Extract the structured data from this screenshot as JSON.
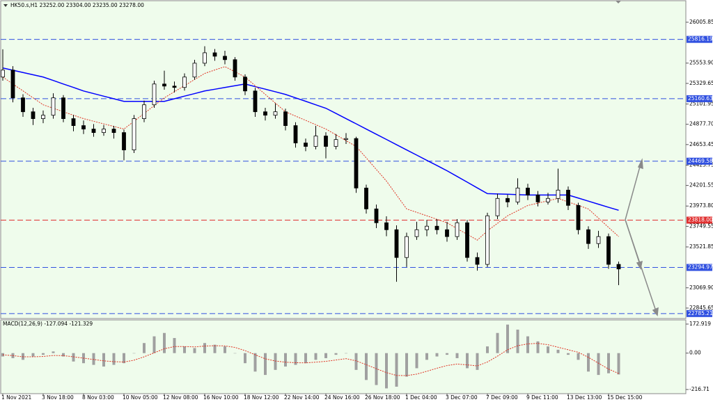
{
  "chart_data": [
    {
      "type": "candlestick",
      "title": "HK50.s,H1  23252.00 23304.00 23235.00 23278.00",
      "categories": [
        "1 Nov 2021",
        null,
        null,
        null,
        "3 Nov 18:00",
        null,
        null,
        null,
        "8 Nov 03:00",
        null,
        null,
        null,
        "10 Nov 05:00",
        null,
        null,
        null,
        "12 Nov 08:00",
        null,
        null,
        null,
        "16 Nov 10:00",
        null,
        null,
        null,
        "18 Nov 12:00",
        null,
        null,
        null,
        "22 Nov 14:00",
        null,
        null,
        null,
        "24 Nov 16:00",
        null,
        null,
        null,
        "26 Nov 18:00",
        null,
        null,
        null,
        "1 Dec 04:00",
        null,
        null,
        null,
        "3 Dec 07:00",
        null,
        null,
        null,
        "7 Dec 09:00",
        null,
        null,
        null,
        "9 Dec 11:00",
        null,
        null,
        null,
        "13 Dec 13:00",
        null,
        null,
        null,
        "15 Dec 15:00",
        null
      ],
      "open": [
        25400,
        25477,
        25170,
        25016,
        24940,
        24978,
        25170,
        24940,
        24863,
        24825,
        24786,
        24825,
        24786,
        24594,
        24940,
        25093,
        25323,
        25300,
        25285,
        25400,
        25553,
        25668,
        25630,
        25592,
        25400,
        25246,
        25016,
        24978,
        25016,
        24863,
        24671,
        24633,
        24748,
        24633,
        24709,
        24720,
        24173,
        23942,
        23789,
        23712,
        23405,
        23636,
        23712,
        23751,
        23712,
        23636,
        23789,
        23405,
        23329,
        23866,
        24058,
        24019,
        24173,
        24096,
        24019,
        24058,
        24150,
        23981,
        23712,
        23559,
        23636,
        23329
      ],
      "high": [
        25707,
        25520,
        25210,
        25060,
        25030,
        25220,
        25200,
        24980,
        24920,
        24880,
        24870,
        24860,
        24820,
        24980,
        25140,
        25360,
        25470,
        25350,
        25440,
        25590,
        25740,
        25710,
        25690,
        25620,
        25430,
        25280,
        25060,
        25110,
        25050,
        24900,
        24720,
        24860,
        24790,
        24770,
        24780,
        24740,
        24210,
        23990,
        23860,
        23760,
        23680,
        23800,
        23820,
        23830,
        23800,
        23830,
        23820,
        23460,
        23900,
        24110,
        24100,
        24280,
        24220,
        24140,
        24120,
        24387,
        24190,
        24010,
        23750,
        23700,
        23670,
        23360
      ],
      "low": [
        25360,
        25120,
        24960,
        24870,
        24890,
        24940,
        24900,
        24800,
        24770,
        24740,
        24750,
        24720,
        24479,
        24560,
        24900,
        25060,
        25260,
        25230,
        25250,
        25370,
        25520,
        25580,
        25540,
        25360,
        25200,
        24960,
        24920,
        24940,
        24810,
        24620,
        24580,
        24600,
        24500,
        24600,
        24660,
        24120,
        23890,
        23730,
        23640,
        23137,
        23300,
        23600,
        23640,
        23660,
        23580,
        23600,
        23360,
        23260,
        23300,
        23830,
        23960,
        23990,
        24040,
        23970,
        23990,
        24010,
        23930,
        23660,
        23500,
        23510,
        23280,
        23099
      ],
      "close": [
        25477,
        25170,
        25016,
        24940,
        24978,
        25170,
        24940,
        24863,
        24825,
        24786,
        24825,
        24786,
        24594,
        24940,
        25093,
        25323,
        25300,
        25285,
        25400,
        25553,
        25668,
        25630,
        25592,
        25400,
        25246,
        25016,
        24978,
        25016,
        24863,
        24671,
        24633,
        24748,
        24633,
        24709,
        24720,
        24173,
        23942,
        23789,
        23712,
        23405,
        23636,
        23712,
        23751,
        23712,
        23636,
        23789,
        23405,
        23329,
        23866,
        24058,
        24019,
        24173,
        24096,
        24019,
        24058,
        24150,
        23981,
        23712,
        23559,
        23636,
        23329,
        23278
      ],
      "moving_averages": [
        {
          "color": "#0000ff",
          "style": "solid",
          "values": [
            25500,
            25475,
            25450,
            25425,
            25400,
            25362,
            25323,
            25285,
            25246,
            25217,
            25188,
            25160,
            25131,
            25131,
            25131,
            25131,
            25131,
            25160,
            25189,
            25217,
            25246,
            25265,
            25285,
            25304,
            25323,
            25294,
            25266,
            25237,
            25208,
            25170,
            25132,
            25093,
            25055,
            24998,
            24940,
            24883,
            24825,
            24767,
            24710,
            24652,
            24594,
            24537,
            24479,
            24422,
            24364,
            24301,
            24238,
            24174,
            24111,
            24107,
            24104,
            24100,
            24096,
            24096,
            24096,
            24096,
            24096,
            24062,
            24028,
            23994,
            23960,
            23927
          ]
        },
        {
          "color": "#e03020",
          "style": "dotted",
          "values": [
            25400,
            25323,
            25247,
            25170,
            25093,
            25055,
            25016,
            24978,
            24940,
            24911,
            24882,
            24854,
            24825,
            24911,
            24998,
            25084,
            25170,
            25238,
            25305,
            25373,
            25440,
            25478,
            25515,
            25458,
            25400,
            25304,
            25208,
            25112,
            25016,
            24968,
            24921,
            24873,
            24825,
            24761,
            24697,
            24633,
            24506,
            24378,
            24250,
            24096,
            23942,
            23904,
            23866,
            23827,
            23789,
            23725,
            23661,
            23597,
            23700,
            23783,
            23866,
            23923,
            23980,
            24006,
            24032,
            24058,
            24019,
            23981,
            23942,
            23840,
            23738,
            23636
          ]
        }
      ],
      "levels": [
        {
          "value": 25816.19,
          "color": "#3050e0"
        },
        {
          "value": 25160.63,
          "color": "#3050e0"
        },
        {
          "value": 24469.58,
          "color": "#3050e0"
        },
        {
          "value": 23818,
          "label": "23818.00",
          "color": "#e03030"
        },
        {
          "value": 23294.97,
          "color": "#3050e0"
        },
        {
          "value": 22785.21,
          "color": "#3050e0"
        }
      ],
      "ylim": [
        22730,
        26244
      ],
      "yticks": [
        26005.85,
        {
          "value": 25553.9,
          "label": "25553.90"
        },
        25329.65,
        25101.95,
        {
          "value": 24877.7,
          "label": "24877.70"
        },
        24653.45,
        24425.75,
        24201.55,
        {
          "value": 23973.8,
          "label": "23973.80"
        },
        23749.55,
        23521.85,
        {
          "value": 23069.9,
          "label": "23069.90"
        },
        22845.65
      ]
    },
    {
      "type": "macd",
      "title": "MACD(12,26,9) -127.094 -121.329",
      "color": "#a0a0a0",
      "values": [
        -20,
        -30,
        -40,
        -20,
        -10,
        10,
        -20,
        -50,
        -60,
        -70,
        -80,
        -70,
        -60,
        0,
        60,
        100,
        120,
        90,
        40,
        30,
        60,
        50,
        40,
        0,
        -60,
        -110,
        -130,
        -100,
        -80,
        -70,
        -60,
        -40,
        -30,
        -10,
        0,
        -100,
        -160,
        -190,
        -210,
        -200,
        -140,
        -90,
        -40,
        -20,
        -10,
        -30,
        -90,
        -100,
        40,
        120,
        170,
        140,
        100,
        70,
        40,
        20,
        -10,
        -40,
        -110,
        -130,
        -120,
        -127.094
      ],
      "signal": {
        "color": "#e03020",
        "values": [
          -10,
          -15,
          -22,
          -22,
          -20,
          -14,
          -15,
          -22,
          -30,
          -38,
          -46,
          -51,
          -53,
          -42,
          -22,
          2,
          26,
          39,
          39,
          37,
          42,
          44,
          43,
          34,
          15,
          -10,
          -34,
          -47,
          -54,
          -57,
          -58,
          -54,
          -49,
          -41,
          -33,
          -46,
          -69,
          -93,
          -116,
          -133,
          -134,
          -125,
          -108,
          -90,
          -74,
          -65,
          -70,
          -76,
          -53,
          -18,
          20,
          44,
          55,
          58,
          50,
          35,
          20,
          5,
          -25,
          -60,
          -95,
          -121.329
        ]
      },
      "ylim": [
        -237.3,
        193.5
      ],
      "yticks": [
        172.919,
        {
          "value": 0,
          "label": "0.00"
        },
        -216.71
      ]
    }
  ]
}
